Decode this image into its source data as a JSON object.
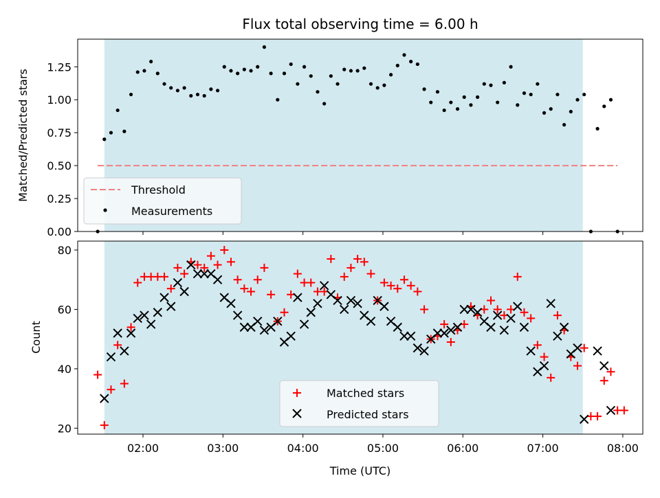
{
  "chart_data": [
    {
      "type": "scatter",
      "title": "Flux total observing time = 6.00 h",
      "xlabel": "",
      "ylabel": "Matched/Predicted stars",
      "ylim": [
        0,
        1.46
      ],
      "xlim": [
        "01:11",
        "08:15"
      ],
      "yticks": [
        "0.00",
        "0.25",
        "0.50",
        "0.75",
        "1.00",
        "1.25"
      ],
      "shaded_region": {
        "from": "01:31",
        "to": "07:30",
        "color": "#d3e9f0"
      },
      "threshold": {
        "name": "Threshold",
        "y": 0.5,
        "from": "01:26",
        "to": "07:56",
        "color": "#f08080",
        "style": "dashed"
      },
      "legend": {
        "position": "lower-left",
        "entries": [
          "Threshold",
          "Measurements"
        ]
      },
      "series": [
        {
          "name": "Measurements",
          "marker": "dot",
          "color": "#000000",
          "points": [
            [
              "01:26",
              0.0
            ],
            [
              "01:31",
              0.7
            ],
            [
              "01:36",
              0.75
            ],
            [
              "01:41",
              0.92
            ],
            [
              "01:46",
              0.76
            ],
            [
              "01:51",
              1.04
            ],
            [
              "01:56",
              1.21
            ],
            [
              "02:01",
              1.22
            ],
            [
              "02:06",
              1.29
            ],
            [
              "02:11",
              1.2
            ],
            [
              "02:16",
              1.12
            ],
            [
              "02:21",
              1.09
            ],
            [
              "02:26",
              1.07
            ],
            [
              "02:31",
              1.09
            ],
            [
              "02:36",
              1.03
            ],
            [
              "02:41",
              1.04
            ],
            [
              "02:46",
              1.03
            ],
            [
              "02:51",
              1.08
            ],
            [
              "02:56",
              1.07
            ],
            [
              "03:01",
              1.25
            ],
            [
              "03:06",
              1.22
            ],
            [
              "03:11",
              1.2
            ],
            [
              "03:16",
              1.23
            ],
            [
              "03:21",
              1.22
            ],
            [
              "03:26",
              1.25
            ],
            [
              "03:31",
              1.4
            ],
            [
              "03:36",
              1.2
            ],
            [
              "03:41",
              1.0
            ],
            [
              "03:46",
              1.2
            ],
            [
              "03:51",
              1.27
            ],
            [
              "03:56",
              1.12
            ],
            [
              "04:01",
              1.25
            ],
            [
              "04:06",
              1.18
            ],
            [
              "04:11",
              1.06
            ],
            [
              "04:16",
              0.97
            ],
            [
              "04:21",
              1.18
            ],
            [
              "04:26",
              1.12
            ],
            [
              "04:31",
              1.23
            ],
            [
              "04:36",
              1.22
            ],
            [
              "04:41",
              1.22
            ],
            [
              "04:46",
              1.24
            ],
            [
              "04:51",
              1.12
            ],
            [
              "04:56",
              1.09
            ],
            [
              "05:01",
              1.11
            ],
            [
              "05:06",
              1.19
            ],
            [
              "05:11",
              1.26
            ],
            [
              "05:16",
              1.34
            ],
            [
              "05:21",
              1.29
            ],
            [
              "05:26",
              1.27
            ],
            [
              "05:31",
              1.08
            ],
            [
              "05:36",
              0.98
            ],
            [
              "05:41",
              1.06
            ],
            [
              "05:46",
              0.92
            ],
            [
              "05:51",
              0.98
            ],
            [
              "05:56",
              0.93
            ],
            [
              "06:01",
              1.02
            ],
            [
              "06:06",
              0.96
            ],
            [
              "06:11",
              1.02
            ],
            [
              "06:16",
              1.12
            ],
            [
              "06:21",
              1.11
            ],
            [
              "06:26",
              0.98
            ],
            [
              "06:31",
              1.13
            ],
            [
              "06:36",
              1.25
            ],
            [
              "06:41",
              0.96
            ],
            [
              "06:46",
              1.05
            ],
            [
              "06:51",
              1.04
            ],
            [
              "06:56",
              1.12
            ],
            [
              "07:01",
              0.9
            ],
            [
              "07:06",
              0.93
            ],
            [
              "07:11",
              1.04
            ],
            [
              "07:16",
              0.81
            ],
            [
              "07:21",
              0.91
            ],
            [
              "07:26",
              1.0
            ],
            [
              "07:31",
              1.04
            ],
            [
              "07:36",
              0.0
            ],
            [
              "07:41",
              0.78
            ],
            [
              "07:46",
              0.95
            ],
            [
              "07:51",
              1.0
            ],
            [
              "07:56",
              0.0
            ]
          ]
        }
      ]
    },
    {
      "type": "scatter",
      "title": "",
      "xlabel": "Time (UTC)",
      "ylabel": "Count",
      "ylim": [
        18,
        83
      ],
      "xlim": [
        "01:11",
        "08:15"
      ],
      "yticks": [
        "20",
        "40",
        "60",
        "80"
      ],
      "xticks": [
        "02:00",
        "03:00",
        "04:00",
        "05:00",
        "06:00",
        "07:00",
        "08:00"
      ],
      "shaded_region": {
        "from": "01:31",
        "to": "07:30",
        "color": "#d3e9f0"
      },
      "legend": {
        "position": "lower-center",
        "entries": [
          "Matched stars",
          "Predicted stars"
        ]
      },
      "series": [
        {
          "name": "Matched stars",
          "marker": "plus",
          "color": "#ff0000",
          "points": [
            [
              "01:26",
              38
            ],
            [
              "01:31",
              21
            ],
            [
              "01:36",
              33
            ],
            [
              "01:41",
              48
            ],
            [
              "01:46",
              35
            ],
            [
              "01:51",
              54
            ],
            [
              "01:56",
              69
            ],
            [
              "02:01",
              71
            ],
            [
              "02:06",
              71
            ],
            [
              "02:11",
              71
            ],
            [
              "02:16",
              71
            ],
            [
              "02:21",
              67
            ],
            [
              "02:26",
              74
            ],
            [
              "02:31",
              72
            ],
            [
              "02:36",
              76
            ],
            [
              "02:41",
              75
            ],
            [
              "02:46",
              74
            ],
            [
              "02:51",
              78
            ],
            [
              "02:56",
              75
            ],
            [
              "03:01",
              80
            ],
            [
              "03:06",
              76
            ],
            [
              "03:11",
              70
            ],
            [
              "03:16",
              67
            ],
            [
              "03:21",
              66
            ],
            [
              "03:26",
              70
            ],
            [
              "03:31",
              74
            ],
            [
              "03:36",
              65
            ],
            [
              "03:41",
              56
            ],
            [
              "03:46",
              59
            ],
            [
              "03:51",
              65
            ],
            [
              "03:56",
              72
            ],
            [
              "04:01",
              69
            ],
            [
              "04:06",
              69
            ],
            [
              "04:11",
              66
            ],
            [
              "04:16",
              66
            ],
            [
              "04:21",
              77
            ],
            [
              "04:26",
              64
            ],
            [
              "04:31",
              71
            ],
            [
              "04:36",
              74
            ],
            [
              "04:41",
              77
            ],
            [
              "04:46",
              76
            ],
            [
              "04:51",
              72
            ],
            [
              "04:56",
              63
            ],
            [
              "05:01",
              69
            ],
            [
              "05:06",
              68
            ],
            [
              "05:11",
              67
            ],
            [
              "05:16",
              70
            ],
            [
              "05:21",
              68
            ],
            [
              "05:26",
              66
            ],
            [
              "05:31",
              60
            ],
            [
              "05:36",
              50
            ],
            [
              "05:41",
              51
            ],
            [
              "05:46",
              55
            ],
            [
              "05:51",
              49
            ],
            [
              "05:56",
              53
            ],
            [
              "06:01",
              55
            ],
            [
              "06:06",
              61
            ],
            [
              "06:11",
              58
            ],
            [
              "06:16",
              60
            ],
            [
              "06:21",
              63
            ],
            [
              "06:26",
              60
            ],
            [
              "06:31",
              58
            ],
            [
              "06:36",
              60
            ],
            [
              "06:41",
              71
            ],
            [
              "06:46",
              59
            ],
            [
              "06:51",
              57
            ],
            [
              "06:56",
              48
            ],
            [
              "07:01",
              44
            ],
            [
              "07:06",
              37
            ],
            [
              "07:11",
              58
            ],
            [
              "07:16",
              53
            ],
            [
              "07:21",
              44
            ],
            [
              "07:26",
              41
            ],
            [
              "07:31",
              47
            ],
            [
              "07:36",
              24
            ],
            [
              "07:41",
              24
            ],
            [
              "07:46",
              36
            ],
            [
              "07:51",
              39
            ],
            [
              "07:56",
              26
            ],
            [
              "08:01",
              26
            ]
          ]
        },
        {
          "name": "Predicted stars",
          "marker": "x",
          "color": "#000000",
          "points": [
            [
              "01:31",
              30
            ],
            [
              "01:36",
              44
            ],
            [
              "01:41",
              52
            ],
            [
              "01:46",
              46
            ],
            [
              "01:51",
              52
            ],
            [
              "01:56",
              57
            ],
            [
              "02:01",
              58
            ],
            [
              "02:06",
              55
            ],
            [
              "02:11",
              59
            ],
            [
              "02:16",
              64
            ],
            [
              "02:21",
              61
            ],
            [
              "02:26",
              69
            ],
            [
              "02:31",
              66
            ],
            [
              "02:36",
              75
            ],
            [
              "02:41",
              72
            ],
            [
              "02:46",
              72
            ],
            [
              "02:51",
              72
            ],
            [
              "02:56",
              70
            ],
            [
              "03:01",
              64
            ],
            [
              "03:06",
              62
            ],
            [
              "03:11",
              58
            ],
            [
              "03:16",
              54
            ],
            [
              "03:21",
              54
            ],
            [
              "03:26",
              56
            ],
            [
              "03:31",
              53
            ],
            [
              "03:36",
              54
            ],
            [
              "03:41",
              56
            ],
            [
              "03:46",
              49
            ],
            [
              "03:51",
              51
            ],
            [
              "03:56",
              64
            ],
            [
              "04:01",
              55
            ],
            [
              "04:06",
              59
            ],
            [
              "04:11",
              62
            ],
            [
              "04:16",
              68
            ],
            [
              "04:21",
              65
            ],
            [
              "04:26",
              63
            ],
            [
              "04:31",
              60
            ],
            [
              "04:36",
              63
            ],
            [
              "04:41",
              62
            ],
            [
              "04:46",
              58
            ],
            [
              "04:51",
              56
            ],
            [
              "04:56",
              63
            ],
            [
              "05:01",
              61
            ],
            [
              "05:06",
              56
            ],
            [
              "05:11",
              54
            ],
            [
              "05:16",
              51
            ],
            [
              "05:21",
              51
            ],
            [
              "05:26",
              47
            ],
            [
              "05:31",
              46
            ],
            [
              "05:36",
              50
            ],
            [
              "05:41",
              52
            ],
            [
              "05:46",
              52
            ],
            [
              "05:51",
              53
            ],
            [
              "05:56",
              54
            ],
            [
              "06:01",
              60
            ],
            [
              "06:06",
              60
            ],
            [
              "06:11",
              59
            ],
            [
              "06:16",
              56
            ],
            [
              "06:21",
              54
            ],
            [
              "06:26",
              58
            ],
            [
              "06:31",
              53
            ],
            [
              "06:36",
              57
            ],
            [
              "06:41",
              61
            ],
            [
              "06:46",
              54
            ],
            [
              "06:51",
              46
            ],
            [
              "06:56",
              39
            ],
            [
              "07:01",
              41
            ],
            [
              "07:06",
              62
            ],
            [
              "07:11",
              51
            ],
            [
              "07:16",
              54
            ],
            [
              "07:21",
              45
            ],
            [
              "07:26",
              47
            ],
            [
              "07:31",
              23
            ],
            [
              "07:41",
              46
            ],
            [
              "07:46",
              41
            ],
            [
              "07:51",
              26
            ]
          ]
        }
      ]
    }
  ]
}
